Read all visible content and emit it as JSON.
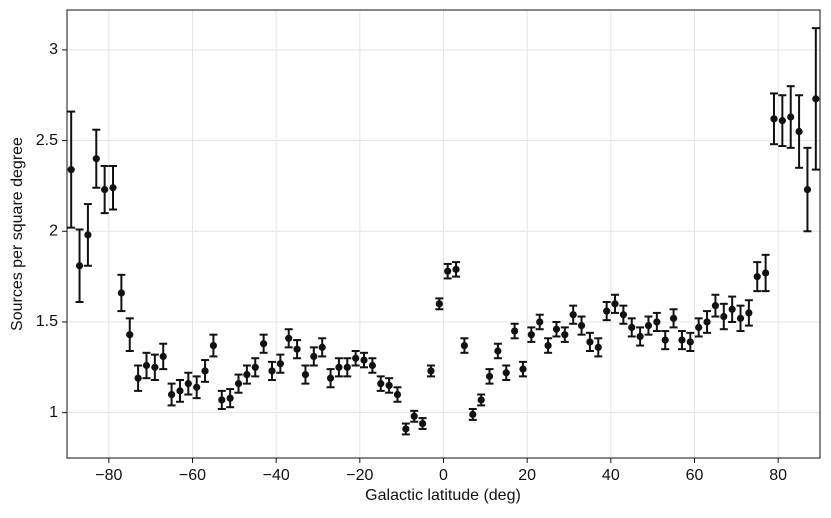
{
  "chart_data": {
    "type": "errorbar",
    "xlabel": "Galactic latitude (deg)",
    "ylabel": "Sources per square degree",
    "color": "#111111",
    "grid": true,
    "xlim": [
      -90,
      90
    ],
    "ylim": [
      0.75,
      3.22
    ],
    "xticks": [
      {
        "value": -80,
        "label": "−80"
      },
      {
        "value": -60,
        "label": "−60"
      },
      {
        "value": -40,
        "label": "−40"
      },
      {
        "value": -20,
        "label": "−20"
      },
      0,
      20,
      40,
      60,
      80
    ],
    "yticks": [
      1,
      1.5,
      2,
      2.5,
      3
    ],
    "x": [
      -89,
      -87,
      -85,
      -83,
      -81,
      -79,
      -77,
      -75,
      -73,
      -71,
      -69,
      -67,
      -65,
      -63,
      -61,
      -59,
      -57,
      -55,
      -53,
      -51,
      -49,
      -47,
      -45,
      -43,
      -41,
      -39,
      -37,
      -35,
      -33,
      -31,
      -29,
      -27,
      -25,
      -23,
      -21,
      -19,
      -17,
      -15,
      -13,
      -11,
      -9,
      -7,
      -5,
      -3,
      -1,
      1,
      3,
      5,
      7,
      9,
      11,
      13,
      15,
      17,
      19,
      21,
      23,
      25,
      27,
      29,
      31,
      33,
      35,
      37,
      39,
      41,
      43,
      45,
      47,
      49,
      51,
      53,
      55,
      57,
      59,
      61,
      63,
      65,
      67,
      69,
      71,
      73,
      75,
      77,
      79,
      81,
      83,
      85,
      87,
      89
    ],
    "values": [
      2.34,
      1.81,
      1.98,
      2.4,
      2.23,
      2.24,
      1.66,
      1.43,
      1.19,
      1.26,
      1.25,
      1.31,
      1.1,
      1.12,
      1.16,
      1.14,
      1.23,
      1.37,
      1.07,
      1.08,
      1.16,
      1.21,
      1.25,
      1.38,
      1.23,
      1.27,
      1.41,
      1.35,
      1.21,
      1.31,
      1.36,
      1.19,
      1.25,
      1.25,
      1.3,
      1.29,
      1.26,
      1.16,
      1.15,
      1.1,
      0.91,
      0.98,
      0.94,
      1.23,
      1.6,
      1.78,
      1.79,
      1.37,
      0.99,
      1.07,
      1.2,
      1.34,
      1.22,
      1.45,
      1.24,
      1.43,
      1.5,
      1.37,
      1.46,
      1.43,
      1.54,
      1.48,
      1.39,
      1.36,
      1.56,
      1.6,
      1.54,
      1.47,
      1.42,
      1.48,
      1.5,
      1.4,
      1.52,
      1.4,
      1.39,
      1.47,
      1.5,
      1.59,
      1.53,
      1.57,
      1.52,
      1.55,
      1.75,
      1.77,
      2.62,
      2.61,
      2.63,
      2.55,
      2.23,
      2.73
    ],
    "errors": [
      0.32,
      0.2,
      0.17,
      0.16,
      0.13,
      0.12,
      0.1,
      0.09,
      0.07,
      0.07,
      0.07,
      0.07,
      0.06,
      0.06,
      0.06,
      0.06,
      0.06,
      0.06,
      0.05,
      0.05,
      0.05,
      0.05,
      0.05,
      0.05,
      0.05,
      0.05,
      0.05,
      0.05,
      0.05,
      0.05,
      0.05,
      0.05,
      0.05,
      0.05,
      0.04,
      0.04,
      0.04,
      0.04,
      0.04,
      0.04,
      0.03,
      0.03,
      0.03,
      0.03,
      0.03,
      0.04,
      0.04,
      0.04,
      0.03,
      0.03,
      0.04,
      0.04,
      0.04,
      0.04,
      0.04,
      0.04,
      0.04,
      0.04,
      0.04,
      0.04,
      0.05,
      0.05,
      0.05,
      0.05,
      0.05,
      0.05,
      0.05,
      0.05,
      0.05,
      0.05,
      0.05,
      0.05,
      0.05,
      0.05,
      0.05,
      0.05,
      0.06,
      0.06,
      0.07,
      0.07,
      0.07,
      0.07,
      0.08,
      0.1,
      0.14,
      0.14,
      0.17,
      0.2,
      0.23,
      0.39
    ]
  }
}
